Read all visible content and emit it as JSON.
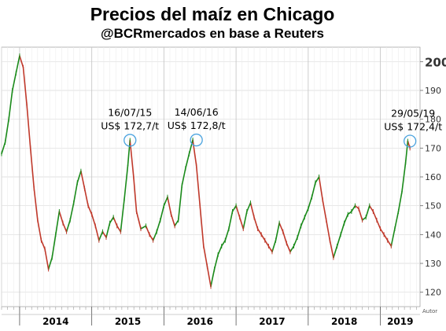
{
  "chart_data": {
    "type": "line",
    "title": "Precios del maíz en Chicago",
    "subtitle": "@BCRmercados en base a Reuters",
    "xlabel": "",
    "ylabel": "",
    "xlim": [
      2013.75,
      2019.55
    ],
    "ylim": [
      115,
      205
    ],
    "y_ticks": [
      120,
      130,
      140,
      150,
      160,
      170,
      180,
      190,
      200
    ],
    "x_year_labels": [
      "2014",
      "2015",
      "2016",
      "2017",
      "2018",
      "2019"
    ],
    "grid": true,
    "series": [
      {
        "values_x": [
          2013.75,
          2013.8,
          2013.85,
          2013.9,
          2013.95,
          2014.0,
          2014.05,
          2014.1,
          2014.15,
          2014.2,
          2014.25,
          2014.3,
          2014.35,
          2014.4,
          2014.45,
          2014.5,
          2014.55,
          2014.6,
          2014.65,
          2014.7,
          2014.75,
          2014.8,
          2014.85,
          2014.9,
          2014.95,
          2015.0,
          2015.05,
          2015.1,
          2015.15,
          2015.2,
          2015.25,
          2015.3,
          2015.35,
          2015.4,
          2015.45,
          2015.5,
          2015.53,
          2015.58,
          2015.62,
          2015.68,
          2015.75,
          2015.8,
          2015.85,
          2015.9,
          2015.95,
          2016.0,
          2016.05,
          2016.1,
          2016.15,
          2016.2,
          2016.25,
          2016.3,
          2016.35,
          2016.4,
          2016.45,
          2016.5,
          2016.55,
          2016.6,
          2016.65,
          2016.7,
          2016.75,
          2016.8,
          2016.85,
          2016.9,
          2016.95,
          2017.0,
          2017.05,
          2017.1,
          2017.15,
          2017.2,
          2017.25,
          2017.3,
          2017.35,
          2017.4,
          2017.45,
          2017.5,
          2017.55,
          2017.6,
          2017.65,
          2017.7,
          2017.75,
          2017.8,
          2017.85,
          2017.9,
          2017.95,
          2018.0,
          2018.05,
          2018.1,
          2018.15,
          2018.2,
          2018.25,
          2018.3,
          2018.35,
          2018.4,
          2018.45,
          2018.5,
          2018.55,
          2018.6,
          2018.65,
          2018.7,
          2018.75,
          2018.8,
          2018.85,
          2018.9,
          2018.95,
          2019.0,
          2019.05,
          2019.1,
          2019.15,
          2019.2,
          2019.25,
          2019.3,
          2019.35,
          2019.38,
          2019.41
        ],
        "values_y": [
          168,
          172,
          180,
          190,
          196,
          202,
          198,
          185,
          170,
          156,
          145,
          138,
          135,
          128,
          132,
          140,
          148,
          144,
          141,
          145,
          151,
          158,
          162,
          156,
          150,
          147,
          143,
          138,
          141,
          139,
          144,
          146,
          143,
          141,
          152,
          164,
          172.7,
          160,
          148,
          142,
          143,
          140,
          138,
          141,
          145,
          150,
          153,
          147,
          143,
          145,
          157,
          163,
          168,
          172.8,
          164,
          150,
          136,
          129,
          122,
          128,
          133,
          136,
          138,
          142,
          148,
          150,
          146,
          142,
          148,
          151,
          146,
          142,
          140,
          138,
          136,
          134,
          138,
          144,
          141,
          137,
          134,
          136,
          139,
          143,
          146,
          149,
          153,
          158,
          160,
          152,
          145,
          138,
          132,
          136,
          140,
          144,
          147,
          148,
          150,
          149,
          145,
          146,
          150,
          148,
          145,
          142,
          140,
          138,
          136,
          142,
          148,
          155,
          165,
          172.4,
          170
        ]
      }
    ],
    "annotations": [
      {
        "date": "16/07/15",
        "text": "US$ 172,7/t",
        "x": 2015.53,
        "y": 172.7
      },
      {
        "date": "14/06/16",
        "text": "US$ 172,8/t",
        "x": 2016.45,
        "y": 172.8
      },
      {
        "date": "29/05/19",
        "text": "US$ 172,4/t",
        "x": 2019.41,
        "y": 172.4
      }
    ],
    "colors": {
      "up": "#1a8a1a",
      "down": "#c0392b",
      "highlight": "#4aa3df",
      "grid": "#d9d9d9"
    },
    "source_label": "Autor"
  }
}
